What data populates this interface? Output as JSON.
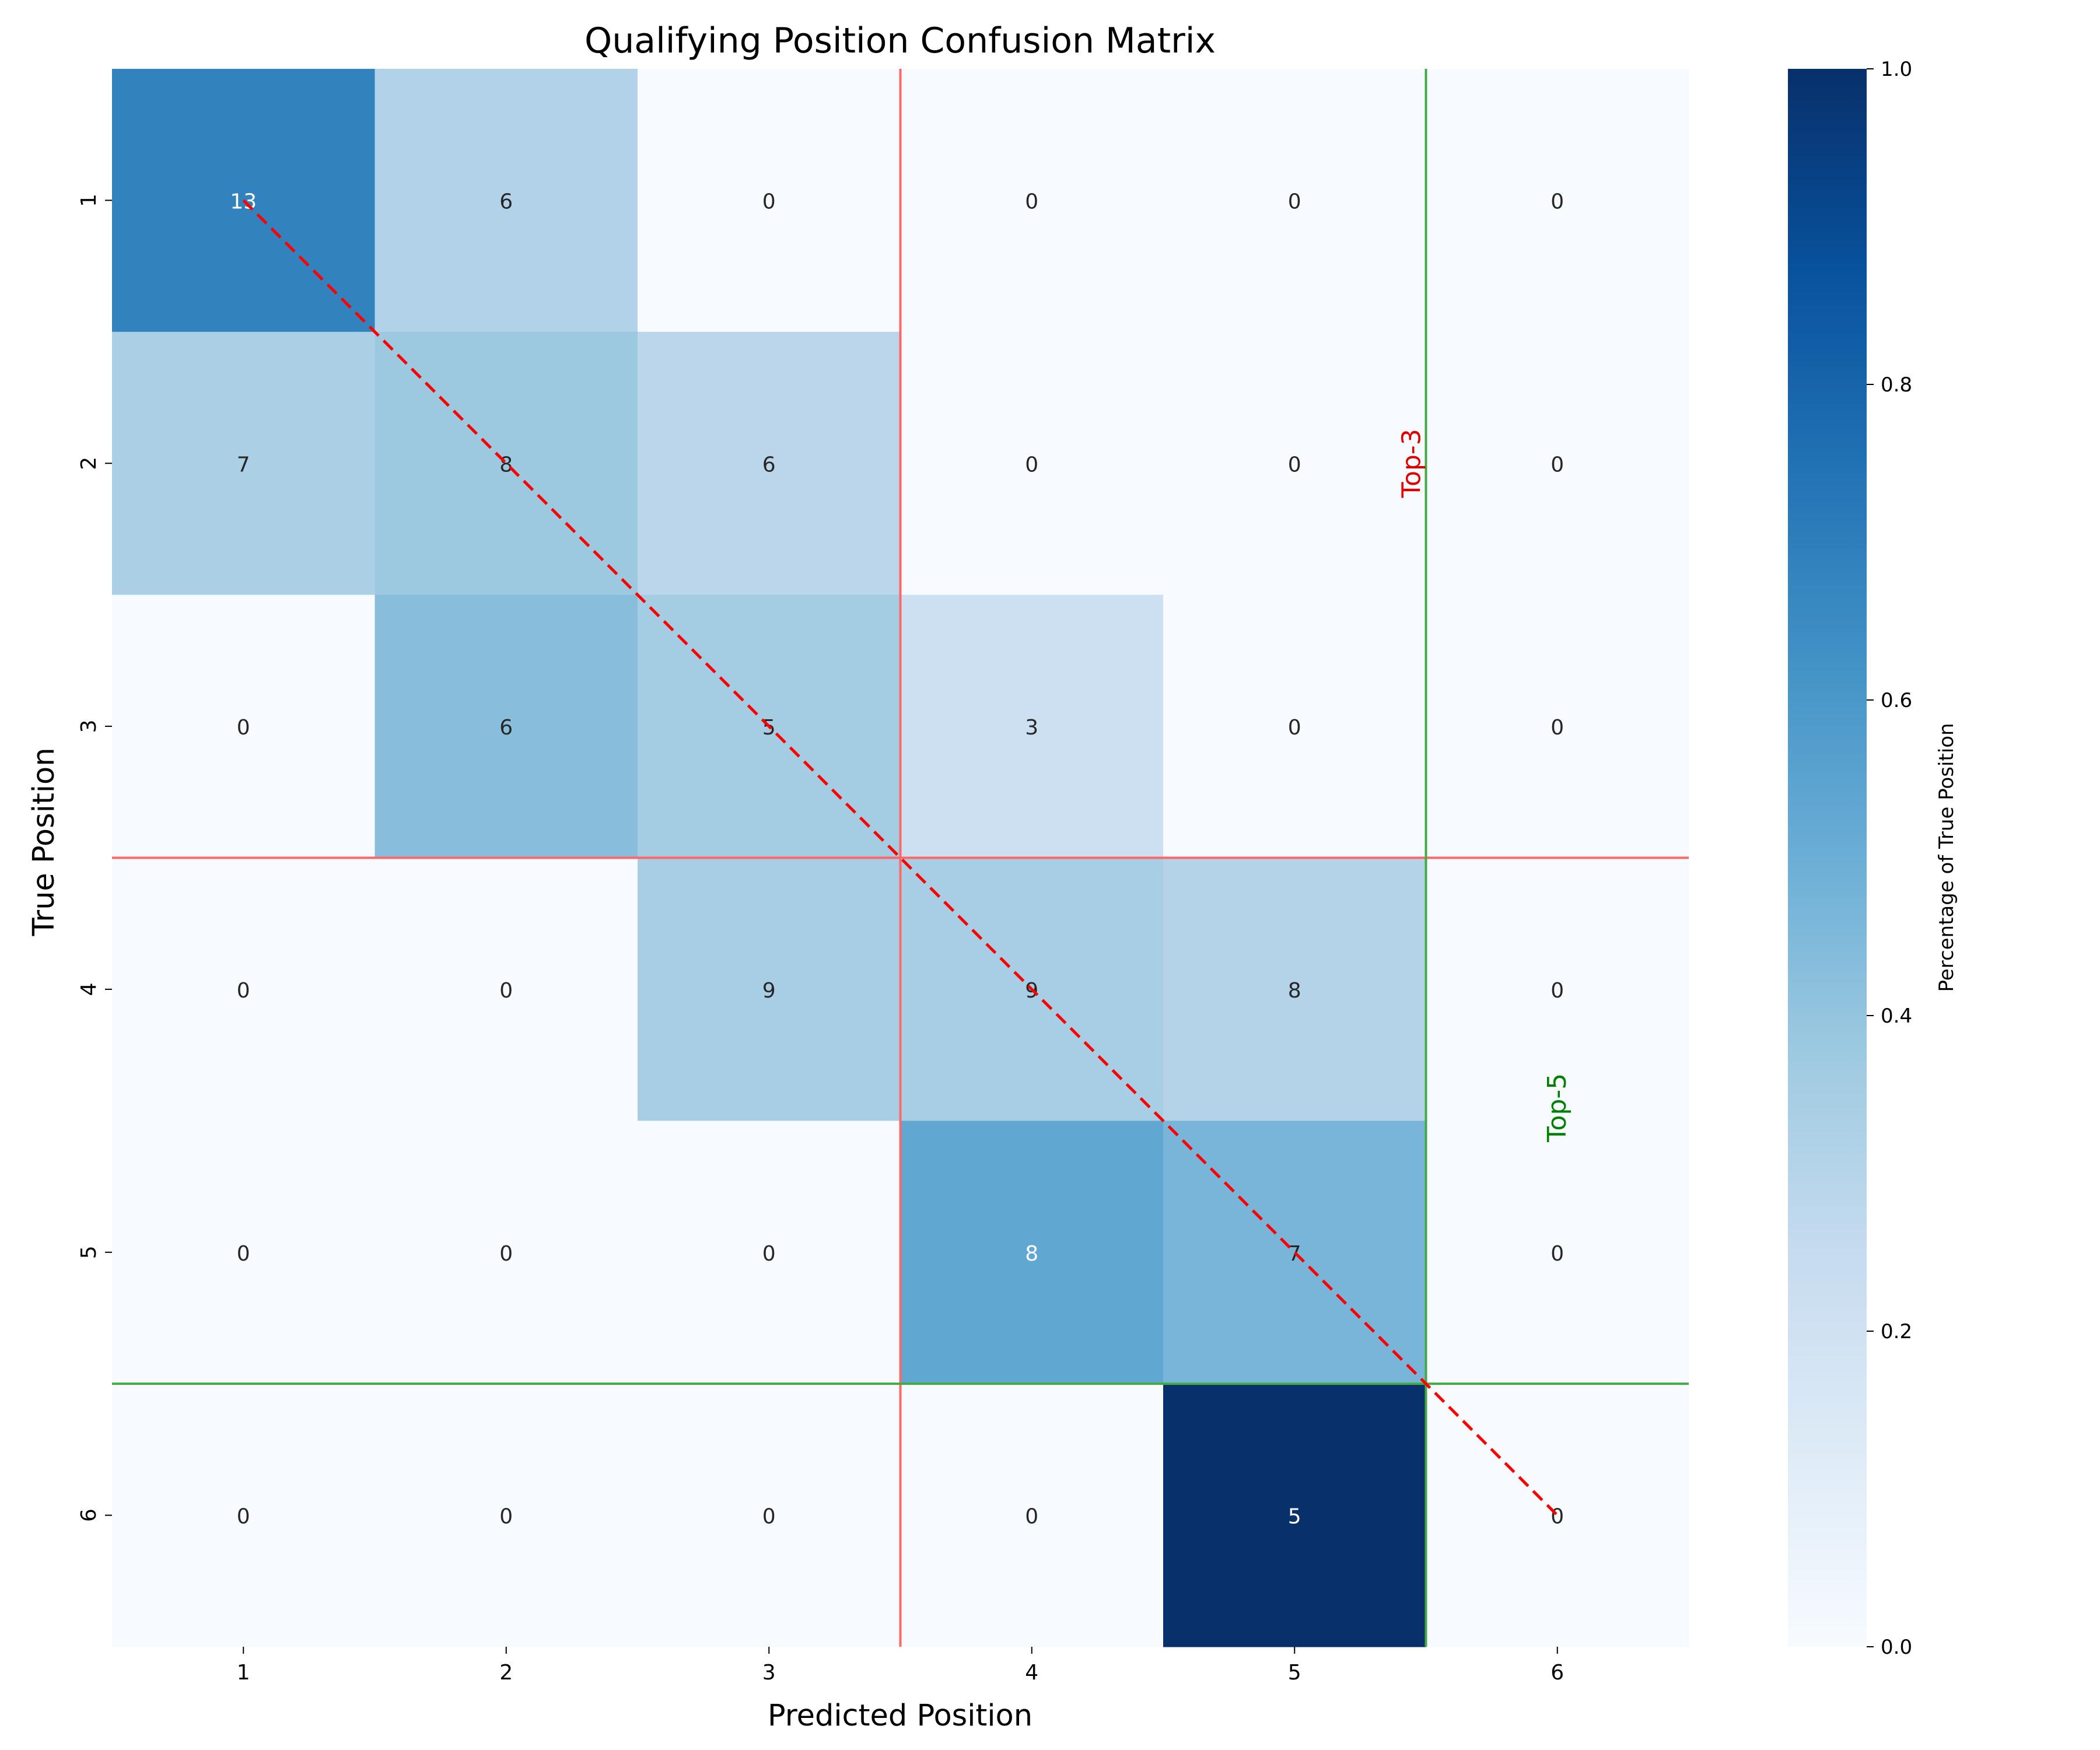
{
  "chart_data": {
    "type": "heatmap",
    "title": "Qualifying Position Confusion Matrix",
    "xlabel": "Predicted Position",
    "ylabel": "True Position",
    "x_categories": [
      "1",
      "2",
      "3",
      "4",
      "5",
      "6"
    ],
    "y_categories": [
      "1",
      "2",
      "3",
      "4",
      "5",
      "6"
    ],
    "values": [
      [
        13,
        6,
        0,
        0,
        0,
        0
      ],
      [
        7,
        8,
        6,
        0,
        0,
        0
      ],
      [
        0,
        6,
        5,
        3,
        0,
        0
      ],
      [
        0,
        0,
        9,
        9,
        8,
        0
      ],
      [
        0,
        0,
        0,
        8,
        7,
        0
      ],
      [
        0,
        0,
        0,
        0,
        5,
        0
      ]
    ],
    "colorbar": {
      "label": "Percentage of True Position",
      "range": [
        0.0,
        1.0
      ],
      "ticks": [
        "0.0",
        "0.2",
        "0.4",
        "0.6",
        "0.8",
        "1.0"
      ],
      "colormap": "Blues"
    },
    "annotations": [
      {
        "text": "Top-3",
        "color": "#e00000",
        "boundary": 3
      },
      {
        "text": "Top-5",
        "color": "#008000",
        "boundary": 5
      }
    ],
    "diagonal_line_color": "#ff0000",
    "top3_line_color": "#ff6666",
    "top5_line_color": "#44aa44"
  }
}
